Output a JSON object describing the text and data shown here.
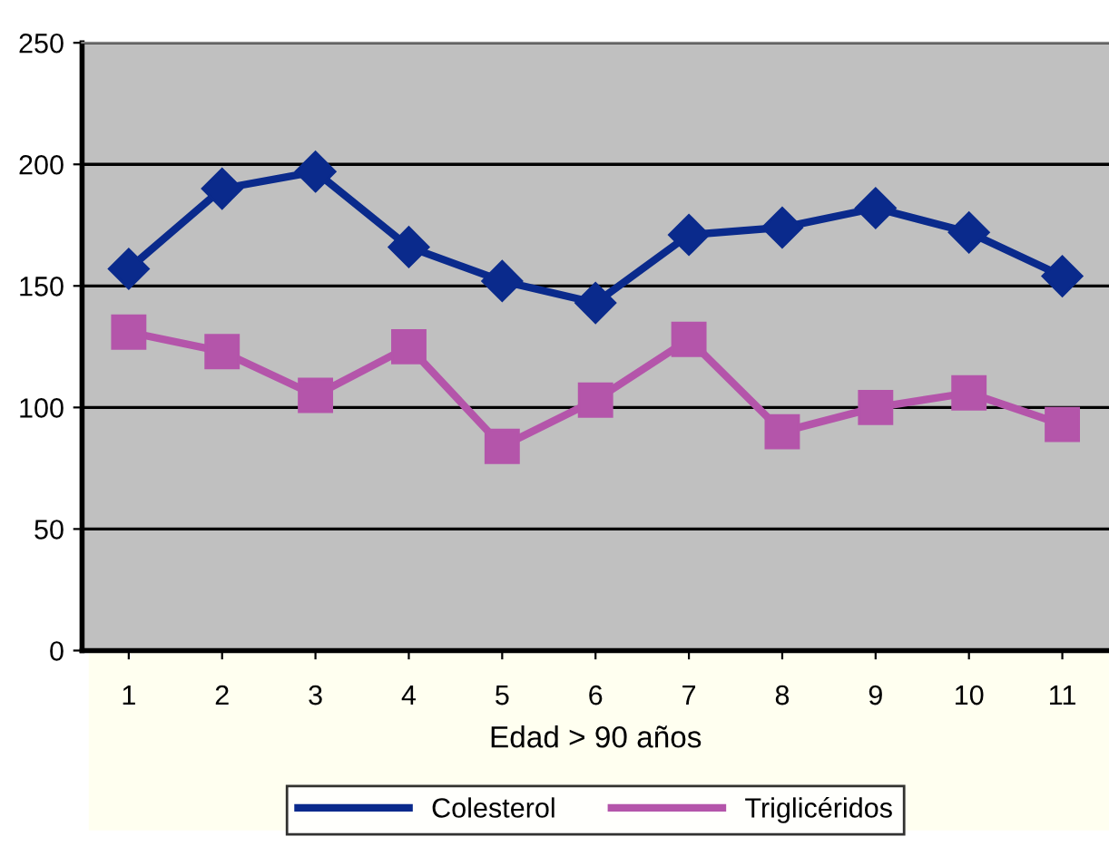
{
  "chart_data": {
    "type": "line",
    "xlabel": "Edad > 90 años",
    "categories": [
      "1",
      "2",
      "3",
      "4",
      "5",
      "6",
      "7",
      "8",
      "9",
      "10",
      "11"
    ],
    "series": [
      {
        "name": "Colesterol",
        "color": "#0a2a8c",
        "marker": "diamond",
        "values": [
          157,
          190,
          197,
          166,
          152,
          143,
          171,
          174,
          182,
          172,
          154
        ]
      },
      {
        "name": "Triglicéridos",
        "color": "#b455aa",
        "marker": "square",
        "values": [
          131,
          123,
          105,
          125,
          84,
          103,
          128,
          90,
          100,
          106,
          93
        ]
      }
    ],
    "ylim": [
      0,
      250
    ],
    "yticks": [
      0,
      50,
      100,
      150,
      200,
      250
    ],
    "grid": "y",
    "legend": "bottom",
    "line_style": "solid"
  }
}
